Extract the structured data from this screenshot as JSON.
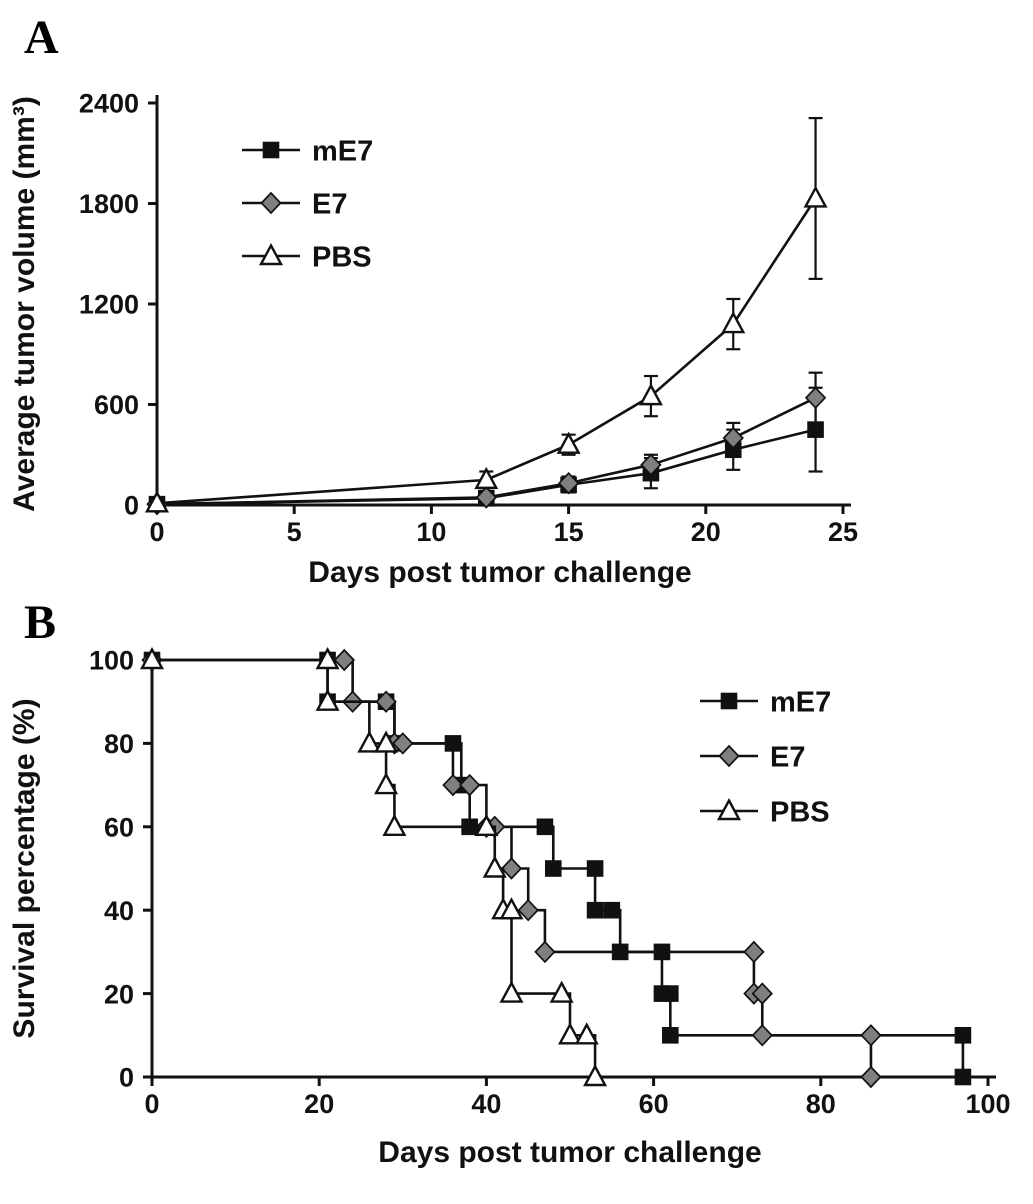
{
  "figure": {
    "background": "#ffffff",
    "line_color": "#111111",
    "panels": [
      "A",
      "B"
    ]
  },
  "chart_data": [
    {
      "panel_label": "A",
      "type": "line",
      "title": "",
      "xlabel": "Days post tumor challenge",
      "ylabel": "Average tumor volume (mm³)",
      "xlim": [
        0,
        25
      ],
      "ylim": [
        0,
        2400
      ],
      "xticks": [
        0,
        5,
        10,
        15,
        20,
        25
      ],
      "yticks": [
        0,
        600,
        1200,
        1800,
        2400
      ],
      "grid": false,
      "legend_position": "top-left",
      "series": [
        {
          "name": "mE7",
          "marker": "square",
          "fill": "#111111",
          "x": [
            0,
            12,
            15,
            18,
            21,
            24
          ],
          "y": [
            5,
            40,
            120,
            190,
            330,
            450
          ],
          "err": [
            0,
            25,
            45,
            90,
            120,
            250
          ]
        },
        {
          "name": "E7",
          "marker": "diamond",
          "fill": "#7f7f7f",
          "x": [
            0,
            12,
            15,
            18,
            21,
            24
          ],
          "y": [
            5,
            45,
            130,
            240,
            400,
            640
          ],
          "err": [
            0,
            20,
            40,
            60,
            90,
            150
          ]
        },
        {
          "name": "PBS",
          "marker": "triangle",
          "fill": "#ffffff",
          "x": [
            0,
            12,
            15,
            18,
            21,
            24
          ],
          "y": [
            10,
            150,
            360,
            650,
            1080,
            1830
          ],
          "err": [
            0,
            50,
            60,
            120,
            150,
            480
          ]
        }
      ]
    },
    {
      "panel_label": "B",
      "type": "step",
      "title": "",
      "xlabel": "Days post tumor challenge",
      "ylabel": "Survival percentage (%)",
      "xlim": [
        0,
        100
      ],
      "ylim": [
        0,
        100
      ],
      "xticks": [
        0,
        20,
        40,
        60,
        80,
        100
      ],
      "yticks": [
        0,
        20,
        40,
        60,
        80,
        100
      ],
      "grid": false,
      "legend_position": "top-right",
      "series": [
        {
          "name": "mE7",
          "marker": "square",
          "fill": "#111111",
          "points": [
            [
              0,
              100
            ],
            [
              21,
              100
            ],
            [
              21,
              90
            ],
            [
              28,
              90
            ],
            [
              29,
              80
            ],
            [
              36,
              80
            ],
            [
              37,
              70
            ],
            [
              38,
              60
            ],
            [
              47,
              60
            ],
            [
              48,
              50
            ],
            [
              53,
              50
            ],
            [
              53,
              40
            ],
            [
              55,
              40
            ],
            [
              56,
              30
            ],
            [
              61,
              30
            ],
            [
              61,
              20
            ],
            [
              62,
              20
            ],
            [
              62,
              10
            ],
            [
              97,
              10
            ],
            [
              97,
              0
            ]
          ]
        },
        {
          "name": "E7",
          "marker": "diamond",
          "fill": "#7f7f7f",
          "points": [
            [
              0,
              100
            ],
            [
              23,
              100
            ],
            [
              24,
              90
            ],
            [
              28,
              90
            ],
            [
              29,
              80
            ],
            [
              30,
              80
            ],
            [
              36,
              70
            ],
            [
              38,
              70
            ],
            [
              40,
              60
            ],
            [
              41,
              60
            ],
            [
              43,
              50
            ],
            [
              45,
              40
            ],
            [
              47,
              30
            ],
            [
              72,
              30
            ],
            [
              72,
              20
            ],
            [
              73,
              20
            ],
            [
              73,
              10
            ],
            [
              86,
              10
            ],
            [
              86,
              0
            ]
          ]
        },
        {
          "name": "PBS",
          "marker": "triangle",
          "fill": "#ffffff",
          "points": [
            [
              0,
              100
            ],
            [
              21,
              100
            ],
            [
              21,
              90
            ],
            [
              26,
              80
            ],
            [
              28,
              80
            ],
            [
              28,
              70
            ],
            [
              29,
              60
            ],
            [
              40,
              60
            ],
            [
              41,
              50
            ],
            [
              42,
              40
            ],
            [
              43,
              40
            ],
            [
              43,
              20
            ],
            [
              49,
              20
            ],
            [
              50,
              10
            ],
            [
              52,
              10
            ],
            [
              53,
              0
            ]
          ]
        }
      ]
    }
  ]
}
